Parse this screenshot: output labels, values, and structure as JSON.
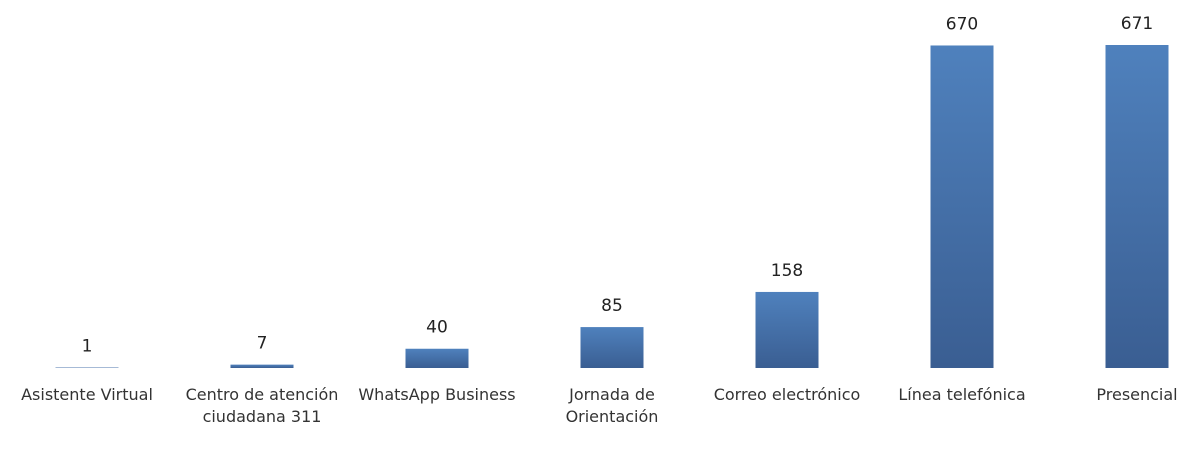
{
  "chart_data": {
    "type": "bar",
    "categories": [
      "Asistente Virtual",
      "Centro de atención ciudadana 311",
      "WhatsApp Business",
      "Jornada de Orientación",
      "Correo electrónico",
      "Línea telefónica",
      "Presencial"
    ],
    "values": [
      1,
      7,
      40,
      85,
      158,
      670,
      671
    ],
    "color": "#4f81bd"
  }
}
